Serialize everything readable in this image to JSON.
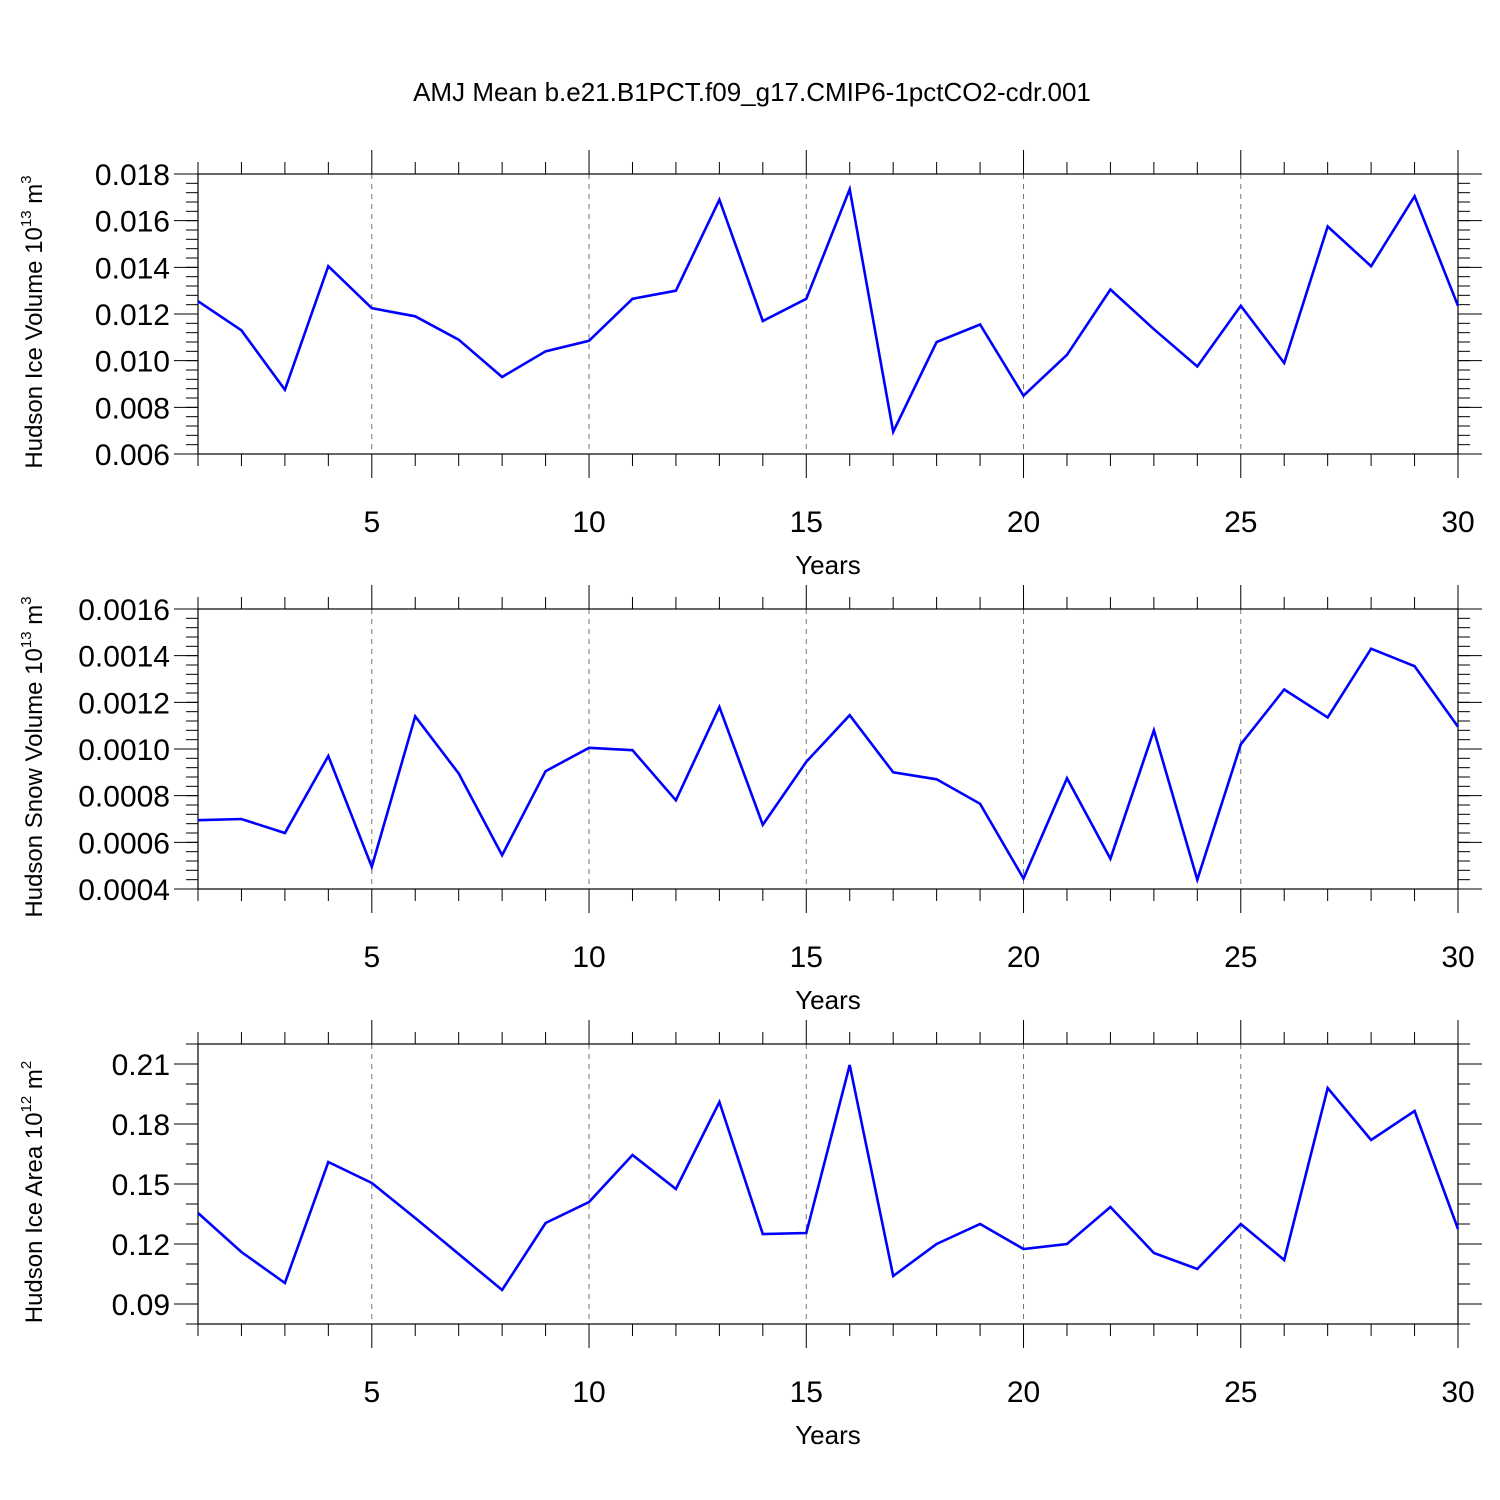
{
  "title": "AMJ Mean b.e21.B1PCT.f09_g17.CMIP6-1pctCO2-cdr.001",
  "line_color": "#0000ff",
  "chart_data": [
    {
      "type": "line",
      "ylabel_main": "Hudson Ice Volume 10",
      "ylabel_exp": "13",
      "ylabel_unit": "m",
      "ylabel_unit_exp": "3",
      "xlabel": "Years",
      "xlim": [
        1,
        30
      ],
      "ylim": [
        0.006,
        0.018
      ],
      "xticks": [
        5,
        10,
        15,
        20,
        25,
        30
      ],
      "yticks": [
        0.006,
        0.008,
        0.01,
        0.012,
        0.014,
        0.016,
        0.018
      ],
      "ytick_labels": [
        "0.006",
        "0.008",
        "0.010",
        "0.012",
        "0.014",
        "0.016",
        "0.018"
      ],
      "yminor_step": 0.0004,
      "x": [
        1,
        2,
        3,
        4,
        5,
        6,
        7,
        8,
        9,
        10,
        11,
        12,
        13,
        14,
        15,
        16,
        17,
        18,
        19,
        20,
        21,
        22,
        23,
        24,
        25,
        26,
        27,
        28,
        29,
        30
      ],
      "values": [
        0.01255,
        0.0113,
        0.00875,
        0.01405,
        0.01225,
        0.0119,
        0.0109,
        0.0093,
        0.0104,
        0.01085,
        0.01265,
        0.013,
        0.0169,
        0.0117,
        0.01265,
        0.01735,
        0.00695,
        0.0108,
        0.01155,
        0.0085,
        0.01025,
        0.01305,
        0.01135,
        0.00975,
        0.01235,
        0.0099,
        0.01575,
        0.01405,
        0.01705,
        0.01235
      ]
    },
    {
      "type": "line",
      "ylabel_main": "Hudson Snow Volume 10",
      "ylabel_exp": "13",
      "ylabel_unit": "m",
      "ylabel_unit_exp": "3",
      "xlabel": "Years",
      "xlim": [
        1,
        30
      ],
      "ylim": [
        0.0004,
        0.0016
      ],
      "xticks": [
        5,
        10,
        15,
        20,
        25,
        30
      ],
      "yticks": [
        0.0004,
        0.0006,
        0.0008,
        0.001,
        0.0012,
        0.0014,
        0.0016
      ],
      "ytick_labels": [
        "0.0004",
        "0.0006",
        "0.0008",
        "0.0010",
        "0.0012",
        "0.0014",
        "0.0016"
      ],
      "yminor_step": 4e-05,
      "x": [
        1,
        2,
        3,
        4,
        5,
        6,
        7,
        8,
        9,
        10,
        11,
        12,
        13,
        14,
        15,
        16,
        17,
        18,
        19,
        20,
        21,
        22,
        23,
        24,
        25,
        26,
        27,
        28,
        29,
        30
      ],
      "values": [
        0.000695,
        0.0007,
        0.00064,
        0.00097,
        0.000495,
        0.00114,
        0.000895,
        0.000545,
        0.000905,
        0.001005,
        0.000995,
        0.00078,
        0.00118,
        0.000675,
        0.000945,
        0.001145,
        0.0009,
        0.00087,
        0.000765,
        0.000445,
        0.000875,
        0.00053,
        0.00108,
        0.00044,
        0.00102,
        0.001255,
        0.001135,
        0.00143,
        0.001355,
        0.001095
      ]
    },
    {
      "type": "line",
      "ylabel_main": "Hudson Ice Area 10",
      "ylabel_exp": "12",
      "ylabel_unit": "m",
      "ylabel_unit_exp": "2",
      "xlabel": "Years",
      "xlim": [
        1,
        30
      ],
      "ylim": [
        0.08,
        0.22
      ],
      "xticks": [
        5,
        10,
        15,
        20,
        25,
        30
      ],
      "yticks": [
        0.09,
        0.12,
        0.15,
        0.18,
        0.21
      ],
      "ytick_labels": [
        "0.09",
        "0.12",
        "0.15",
        "0.18",
        "0.21"
      ],
      "yminor_step": 0.01,
      "x": [
        1,
        2,
        3,
        4,
        5,
        6,
        7,
        8,
        9,
        10,
        11,
        12,
        13,
        14,
        15,
        16,
        17,
        18,
        19,
        20,
        21,
        22,
        23,
        24,
        25,
        26,
        27,
        28,
        29,
        30
      ],
      "values": [
        0.1355,
        0.116,
        0.1005,
        0.161,
        0.1505,
        0.133,
        0.115,
        0.097,
        0.1305,
        0.141,
        0.1645,
        0.1475,
        0.191,
        0.125,
        0.1255,
        0.2095,
        0.104,
        0.12,
        0.13,
        0.1175,
        0.12,
        0.1385,
        0.1155,
        0.1075,
        0.13,
        0.112,
        0.198,
        0.172,
        0.1865,
        0.1275
      ]
    }
  ]
}
